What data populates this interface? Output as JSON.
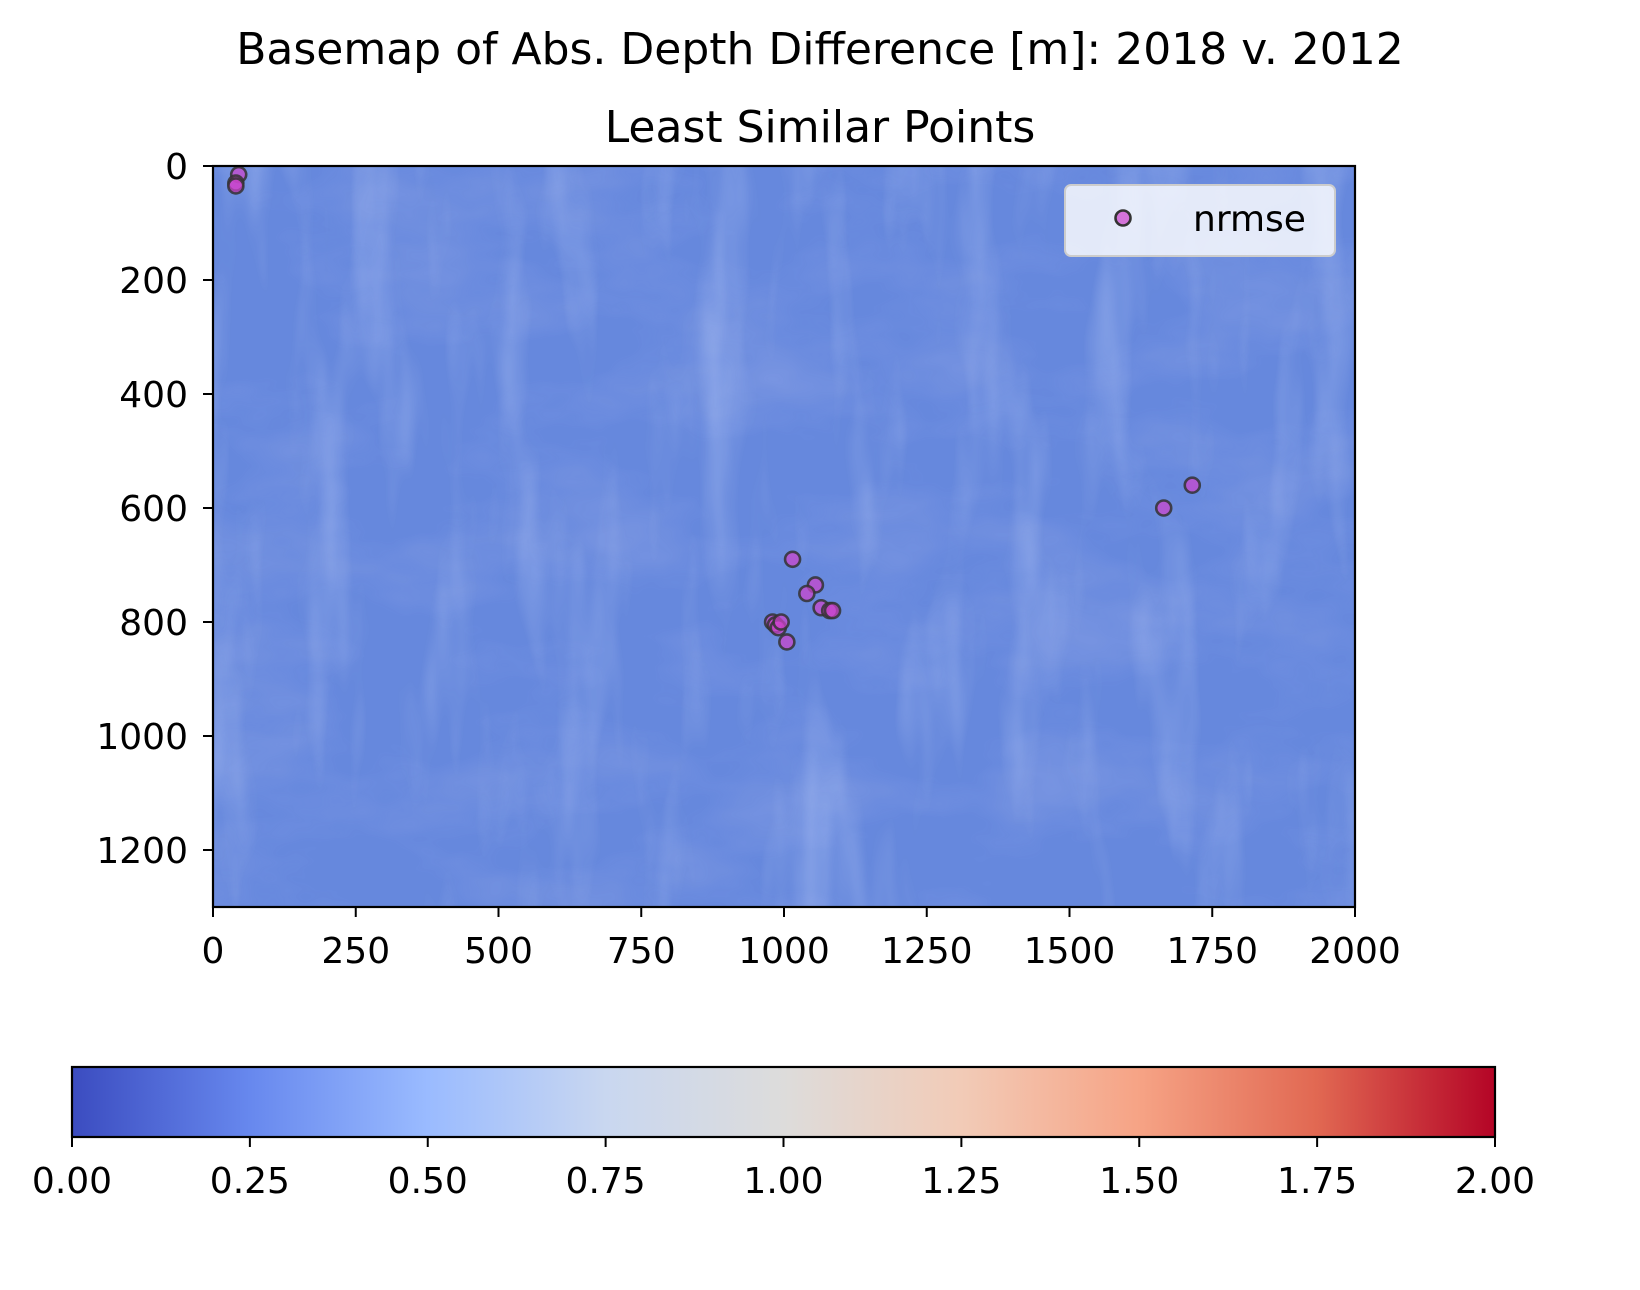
{
  "chart_data": {
    "type": "scatter",
    "title": "Basemap of Abs. Depth Difference [m]: 2018 v. 2012",
    "subtitle": "Least Similar Points",
    "xlim": [
      0,
      2000
    ],
    "ylim": [
      1300,
      0
    ],
    "x_ticks": [
      0,
      250,
      500,
      750,
      1000,
      1250,
      1500,
      1750,
      2000
    ],
    "y_ticks": [
      0,
      200,
      400,
      600,
      800,
      1000,
      1200
    ],
    "x_tick_labels": [
      "0",
      "250",
      "500",
      "750",
      "1000",
      "1250",
      "1500",
      "1750",
      "2000"
    ],
    "y_tick_labels": [
      "0",
      "200",
      "400",
      "600",
      "800",
      "1000",
      "1200"
    ],
    "legend": {
      "placement": "top-right",
      "entries": [
        "nrmse"
      ]
    },
    "series": [
      {
        "name": "nrmse",
        "color": "#cc44cc",
        "edge_color": "#333333",
        "x": [
          45,
          40,
          40,
          1015,
          1055,
          1040,
          1065,
          1080,
          1085,
          980,
          985,
          990,
          995,
          1005,
          1665,
          1715
        ],
        "y": [
          15,
          30,
          35,
          690,
          735,
          750,
          775,
          780,
          780,
          800,
          805,
          810,
          800,
          835,
          600,
          560
        ]
      }
    ],
    "basemap": {
      "colormap": "coolwarm",
      "dominant_color": "#6688dd"
    },
    "colorbar": {
      "orientation": "horizontal",
      "range": [
        0,
        2
      ],
      "ticks": [
        0,
        0.25,
        0.5,
        0.75,
        1.0,
        1.25,
        1.5,
        1.75,
        2.0
      ],
      "tick_labels": [
        "0.00",
        "0.25",
        "0.50",
        "0.75",
        "1.00",
        "1.25",
        "1.50",
        "1.75",
        "2.00"
      ],
      "colors": [
        "#3b4cc0",
        "#6788ee",
        "#9abbff",
        "#c9d7f0",
        "#dddcdb",
        "#f2cbb7",
        "#f6a385",
        "#e16852",
        "#b40426"
      ]
    }
  }
}
